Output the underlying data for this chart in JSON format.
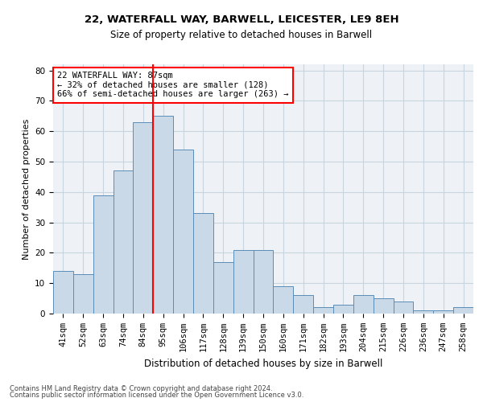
{
  "title": "22, WATERFALL WAY, BARWELL, LEICESTER, LE9 8EH",
  "subtitle": "Size of property relative to detached houses in Barwell",
  "xlabel": "Distribution of detached houses by size in Barwell",
  "ylabel": "Number of detached properties",
  "categories": [
    "41sqm",
    "52sqm",
    "63sqm",
    "74sqm",
    "84sqm",
    "95sqm",
    "106sqm",
    "117sqm",
    "128sqm",
    "139sqm",
    "150sqm",
    "160sqm",
    "171sqm",
    "182sqm",
    "193sqm",
    "204sqm",
    "215sqm",
    "226sqm",
    "236sqm",
    "247sqm",
    "258sqm"
  ],
  "values": [
    14,
    13,
    39,
    47,
    63,
    65,
    54,
    33,
    17,
    21,
    21,
    9,
    6,
    2,
    3,
    6,
    5,
    4,
    1,
    1,
    2
  ],
  "bar_fill_color": "#c9d9e8",
  "bar_edge_color": "#5b8db8",
  "red_line_x": 4.5,
  "annotation_text": "22 WATERFALL WAY: 87sqm\n← 32% of detached houses are smaller (128)\n66% of semi-detached houses are larger (263) →",
  "annotation_box_color": "white",
  "annotation_box_edge": "red",
  "grid_color": "#c8d4de",
  "background_color": "#eef2f7",
  "footer_line1": "Contains HM Land Registry data © Crown copyright and database right 2024.",
  "footer_line2": "Contains public sector information licensed under the Open Government Licence v3.0.",
  "ylim": [
    0,
    82
  ],
  "yticks": [
    0,
    10,
    20,
    30,
    40,
    50,
    60,
    70,
    80
  ],
  "title_fontsize": 9.5,
  "subtitle_fontsize": 8.5,
  "ylabel_fontsize": 8,
  "xlabel_fontsize": 8.5,
  "tick_fontsize": 7.5,
  "annotation_fontsize": 7.5
}
